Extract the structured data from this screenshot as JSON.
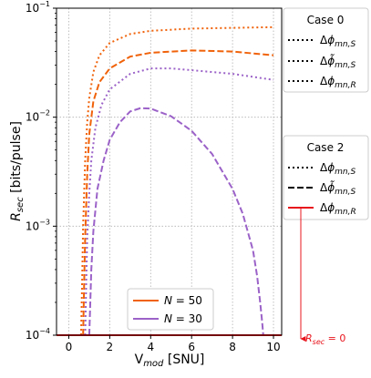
{
  "chart_data": {
    "type": "line",
    "xlabel": "V_mod [SNU]",
    "ylabel": "R_sec [bits/pulse]",
    "xlim": [
      -0.6,
      10.4
    ],
    "ylim": [
      0.0001,
      0.1
    ],
    "yscale": "log",
    "grid": true,
    "x_ticks": [
      "0",
      "2",
      "4",
      "6",
      "8",
      "10"
    ],
    "y_ticks": [
      "10^-4",
      "10^-3",
      "10^-2",
      "10^-1"
    ],
    "colors": {
      "N50": "#f0620a",
      "N30": "#9b62c8",
      "red": "#e8141c"
    },
    "series": [
      {
        "linestyle": "dotted",
        "color": "#f0620a",
        "x": [
          0.6,
          0.65,
          0.7,
          0.8,
          0.9,
          1.0,
          1.2,
          1.5,
          2.0,
          3.0,
          4.0,
          6.0,
          8.0,
          10.0
        ],
        "y": [
          0.0001,
          0.0003,
          0.001,
          0.004,
          0.009,
          0.015,
          0.026,
          0.037,
          0.048,
          0.058,
          0.062,
          0.065,
          0.066,
          0.067
        ]
      },
      {
        "linestyle": "dashed",
        "color": "#f0620a",
        "x": [
          0.7,
          0.75,
          0.8,
          0.9,
          1.0,
          1.2,
          1.5,
          2.0,
          3.0,
          4.0,
          6.0,
          8.0,
          10.0
        ],
        "y": [
          0.0001,
          0.0003,
          0.0008,
          0.003,
          0.007,
          0.014,
          0.021,
          0.028,
          0.036,
          0.039,
          0.041,
          0.04,
          0.037
        ]
      },
      {
        "linestyle": "dotted",
        "color": "#9b62c8",
        "x": [
          0.8,
          0.85,
          0.9,
          1.0,
          1.1,
          1.3,
          1.6,
          2.0,
          3.0,
          4.0,
          5.0,
          6.0,
          8.0,
          10.0
        ],
        "y": [
          0.0001,
          0.0003,
          0.0008,
          0.002,
          0.004,
          0.008,
          0.013,
          0.018,
          0.025,
          0.028,
          0.028,
          0.027,
          0.025,
          0.022
        ]
      },
      {
        "linestyle": "dashed",
        "color": "#9b62c8",
        "x": [
          1.0,
          1.05,
          1.1,
          1.2,
          1.4,
          1.7,
          2.0,
          2.5,
          3.0,
          3.5,
          4.0,
          5.0,
          6.0,
          7.0,
          8.0,
          8.5,
          9.0,
          9.2,
          9.35,
          9.45,
          9.5
        ],
        "y": [
          0.0001,
          0.0002,
          0.0004,
          0.0009,
          0.0022,
          0.004,
          0.0062,
          0.009,
          0.0113,
          0.0121,
          0.012,
          0.0102,
          0.0075,
          0.0046,
          0.0022,
          0.0013,
          0.0006,
          0.00035,
          0.0002,
          0.00013,
          0.0001
        ]
      },
      {
        "linestyle": "solid",
        "color": "#e8141c",
        "x": [
          -0.6,
          10.4
        ],
        "y": [
          0.0001,
          0.0001
        ]
      }
    ],
    "legends": {
      "n_legend": [
        {
          "label": "N = 50",
          "color": "#f0620a"
        },
        {
          "label": "N = 30",
          "color": "#9b62c8"
        }
      ],
      "case0": {
        "title": "Case 0",
        "entries": [
          {
            "style": "dotted",
            "label": "Δφ_mn,S"
          },
          {
            "style": "dotted",
            "label": "Δφ̃_mn,S"
          },
          {
            "style": "dotted",
            "label": "Δφ_mn,R"
          }
        ]
      },
      "case2": {
        "title": "Case 2",
        "entries": [
          {
            "style": "dotted",
            "label": "Δφ_mn,S"
          },
          {
            "style": "dashed",
            "label": "Δφ̃_mn,S"
          },
          {
            "style": "solid",
            "label": "Δφ_mn,R"
          }
        ]
      }
    },
    "annotation": "R_sec = 0"
  }
}
